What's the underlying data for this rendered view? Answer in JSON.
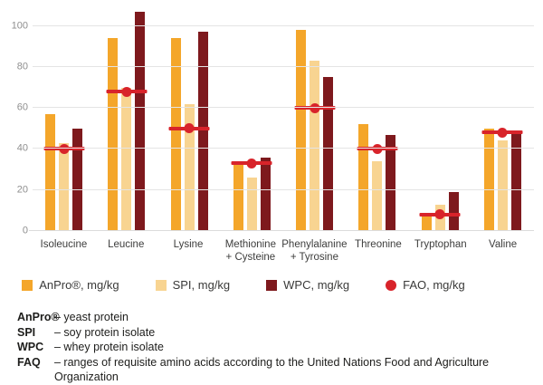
{
  "chart_data": {
    "type": "bar",
    "title": "",
    "xlabel": "",
    "ylabel": "",
    "ymax": 110,
    "yticks": [
      0,
      20,
      40,
      60,
      80,
      100
    ],
    "grid": true,
    "legend_position": "bottom",
    "categories": [
      "Isoleucine",
      "Leucine",
      "Lysine",
      "Methionine + Cysteine",
      "Phenylalanine + Tyrosine",
      "Threonine",
      "Tryptophan",
      "Valine"
    ],
    "category_label_lines": [
      [
        "Isoleucine"
      ],
      [
        "Leucine"
      ],
      [
        "Lysine"
      ],
      [
        "Methionine",
        "+ Cysteine"
      ],
      [
        "Phenylalanine",
        "+ Tyrosine"
      ],
      [
        "Threonine"
      ],
      [
        "Tryptophan"
      ],
      [
        "Valine"
      ]
    ],
    "series": [
      {
        "name": "AnPro®, mg/kg",
        "color": "#F4A62A",
        "values": [
          57,
          94,
          94,
          33,
          98,
          52,
          8,
          50
        ]
      },
      {
        "name": "SPI, mg/kg",
        "color": "#F8D491",
        "values": [
          43,
          70,
          62,
          26,
          83,
          34,
          13,
          44
        ]
      },
      {
        "name": "WPC, mg/kg",
        "color": "#7E191D",
        "values": [
          50,
          107,
          97,
          36,
          75,
          47,
          19,
          48
        ]
      }
    ],
    "fao_series": {
      "name": "FAO, mg/kg",
      "color": "#D8232A",
      "values": [
        40,
        68,
        50,
        33,
        60,
        40,
        8,
        48
      ]
    }
  },
  "colors": {
    "anpro": "#F4A62A",
    "spi": "#F8D491",
    "wpc": "#7E191D",
    "fao": "#D8232A",
    "gridline": "#E4E4E4"
  },
  "footnotes": [
    {
      "term": "AnPro®",
      "definition": "– yeast protein"
    },
    {
      "term": "SPI",
      "definition": "– soy protein isolate"
    },
    {
      "term": "WPC",
      "definition": "– whey protein isolate"
    },
    {
      "term": "FAQ",
      "definition": "– ranges of requisite amino acids according to the United Nations Food and Agriculture Organization"
    }
  ]
}
